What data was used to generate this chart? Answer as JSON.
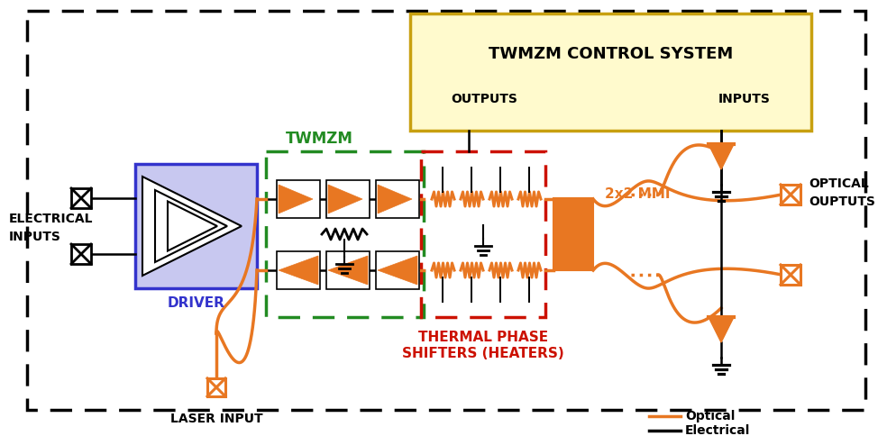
{
  "bg_color": "#ffffff",
  "orange": "#E87722",
  "black": "#000000",
  "green": "#228B22",
  "red": "#CC1100",
  "blue_driver": "#3333CC",
  "driver_fill": "#C8C8F0",
  "control_fill": "#FFFACD",
  "control_edge": "#C8A010",
  "twmzm_label": "TWMZM",
  "driver_label": "DRIVER",
  "control_label": "TWMZM CONTROL SYSTEM",
  "outputs_label": "OUTPUTS",
  "inputs_label": "INPUTS",
  "mmi_label": "2x2 MMI",
  "tps_label1": "THERMAL PHASE",
  "tps_label2": "SHIFTERS (HEATERS)",
  "elec_inputs_label1": "ELECTRICAL",
  "elec_inputs_label2": "INPUTS",
  "optical_outputs_label1": "OPTICAL",
  "optical_outputs_label2": "OUPTUTS",
  "laser_label": "LASER INPUT",
  "optical_legend": "Optical",
  "electrical_legend": "Electrical"
}
